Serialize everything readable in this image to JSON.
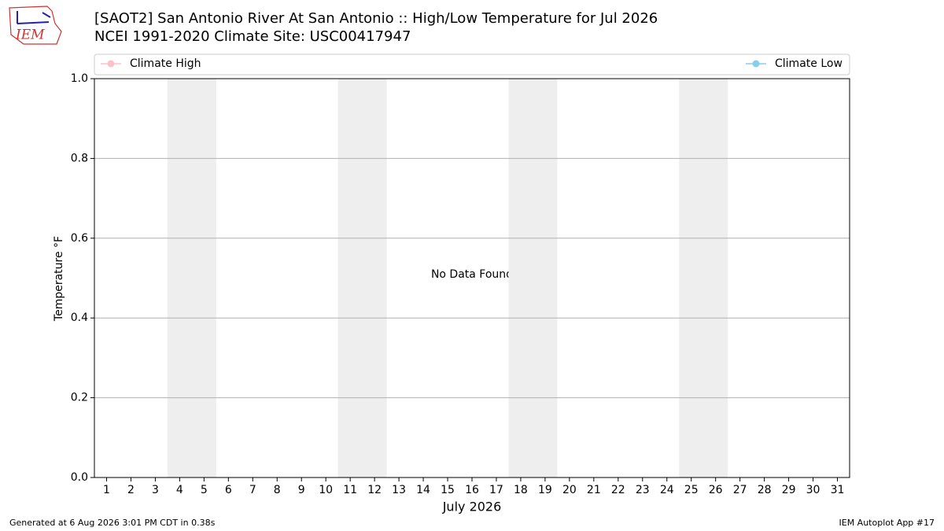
{
  "logo_text": "IEM",
  "chart_data": {
    "type": "line",
    "title": "[SAOT2] San Antonio River At San Antonio :: High/Low Temperature for Jul 2026",
    "subtitle": "NCEI 1991-2020 Climate Site: USC00417947",
    "x_label": "July 2026",
    "y_label": "Temperature °F",
    "annotation": "No Data Found",
    "x": [
      1,
      2,
      3,
      4,
      5,
      6,
      7,
      8,
      9,
      10,
      11,
      12,
      13,
      14,
      15,
      16,
      17,
      18,
      19,
      20,
      21,
      22,
      23,
      24,
      25,
      26,
      27,
      28,
      29,
      30,
      31
    ],
    "series": [
      {
        "name": "Climate High",
        "color": "#ffc0cb",
        "values": [
          null,
          null,
          null,
          null,
          null,
          null,
          null,
          null,
          null,
          null,
          null,
          null,
          null,
          null,
          null,
          null,
          null,
          null,
          null,
          null,
          null,
          null,
          null,
          null,
          null,
          null,
          null,
          null,
          null,
          null,
          null
        ]
      },
      {
        "name": "Climate Low",
        "color": "#87ceeb",
        "values": [
          null,
          null,
          null,
          null,
          null,
          null,
          null,
          null,
          null,
          null,
          null,
          null,
          null,
          null,
          null,
          null,
          null,
          null,
          null,
          null,
          null,
          null,
          null,
          null,
          null,
          null,
          null,
          null,
          null,
          null,
          null
        ]
      }
    ],
    "weekend_spans": [
      [
        3.5,
        5.5
      ],
      [
        10.5,
        12.5
      ],
      [
        17.5,
        19.5
      ],
      [
        24.5,
        26.5
      ]
    ],
    "xlim": [
      0.5,
      31.5
    ],
    "xticks": [
      1,
      2,
      3,
      4,
      5,
      6,
      7,
      8,
      9,
      10,
      11,
      12,
      13,
      14,
      15,
      16,
      17,
      18,
      19,
      20,
      21,
      22,
      23,
      24,
      25,
      26,
      27,
      28,
      29,
      30,
      31
    ],
    "ylim": [
      0,
      1
    ],
    "yticks": [
      {
        "value": 0,
        "label": "0.0"
      },
      {
        "value": 0.2,
        "label": "0.2"
      },
      {
        "value": 0.4,
        "label": "0.4"
      },
      {
        "value": 0.6,
        "label": "0.6"
      },
      {
        "value": 0.8,
        "label": "0.8"
      },
      {
        "value": 1,
        "label": "1.0"
      }
    ],
    "grid": true,
    "footer_left": "Generated at 6 Aug 2026 3:01 PM CDT in 0.38s",
    "footer_right": "IEM Autoplot App #17"
  }
}
